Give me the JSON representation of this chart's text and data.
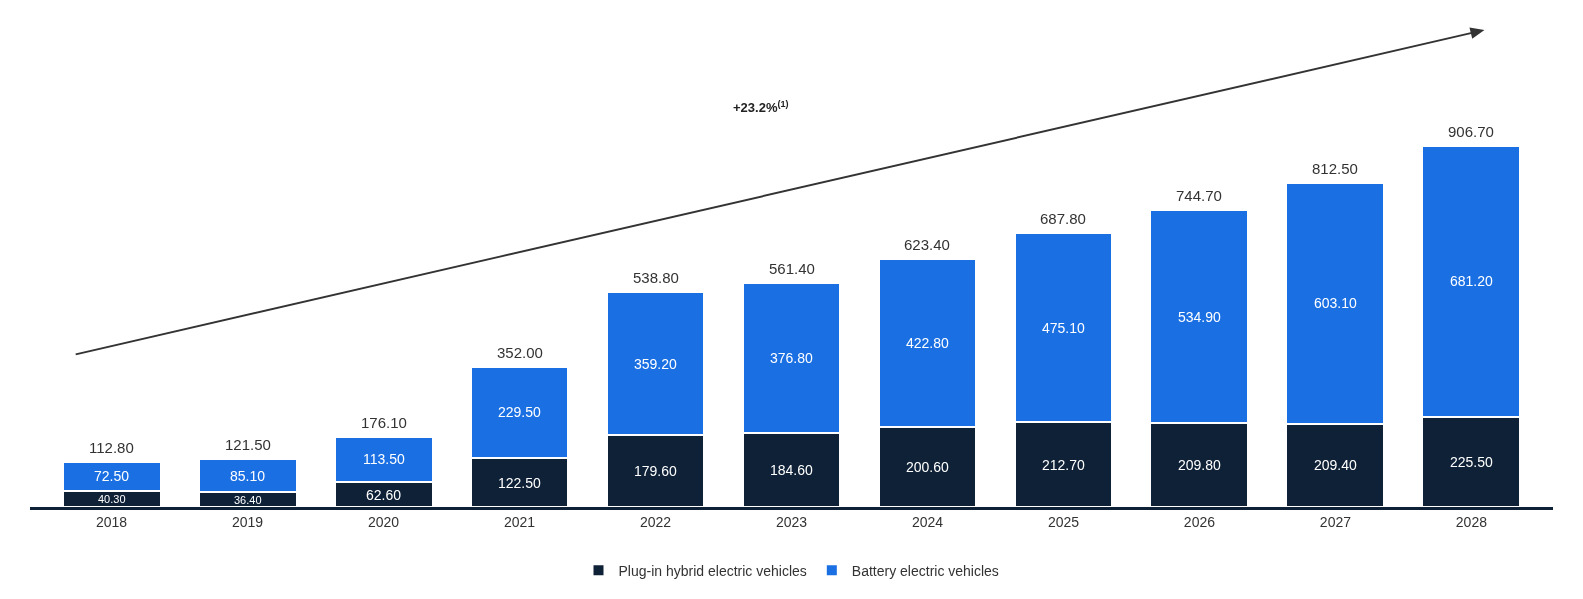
{
  "chart_data": {
    "type": "bar",
    "stacked": true,
    "categories": [
      "2018",
      "2019",
      "2020",
      "2021",
      "2022",
      "2023",
      "2024",
      "2025",
      "2026",
      "2027",
      "2028"
    ],
    "series": [
      {
        "name": "Plug-in hybrid electric vehicles",
        "color": "#0f2137",
        "values": [
          40.3,
          36.4,
          62.6,
          122.5,
          179.6,
          184.6,
          200.6,
          212.7,
          209.8,
          209.4,
          225.5
        ],
        "value_labels": [
          "40.30",
          "36.40",
          "62.60",
          "122.50",
          "179.60",
          "184.60",
          "200.60",
          "212.70",
          "209.80",
          "209.40",
          "225.50"
        ]
      },
      {
        "name": "Battery electric vehicles",
        "color": "#1a6fe3",
        "values": [
          72.5,
          85.1,
          113.5,
          229.5,
          359.2,
          376.8,
          422.8,
          475.1,
          534.9,
          603.1,
          681.2
        ],
        "value_labels": [
          "72.50",
          "85.10",
          "113.50",
          "229.50",
          "359.20",
          "376.80",
          "422.80",
          "475.10",
          "534.90",
          "603.10",
          "681.20"
        ]
      }
    ],
    "totals": [
      "112.80",
      "121.50",
      "176.10",
      "352.00",
      "538.80",
      "561.40",
      "623.40",
      "687.80",
      "744.70",
      "812.50",
      "906.70"
    ],
    "annotations": [
      "+23.2%$^{(1)}$"
    ],
    "legend": "bottom"
  }
}
